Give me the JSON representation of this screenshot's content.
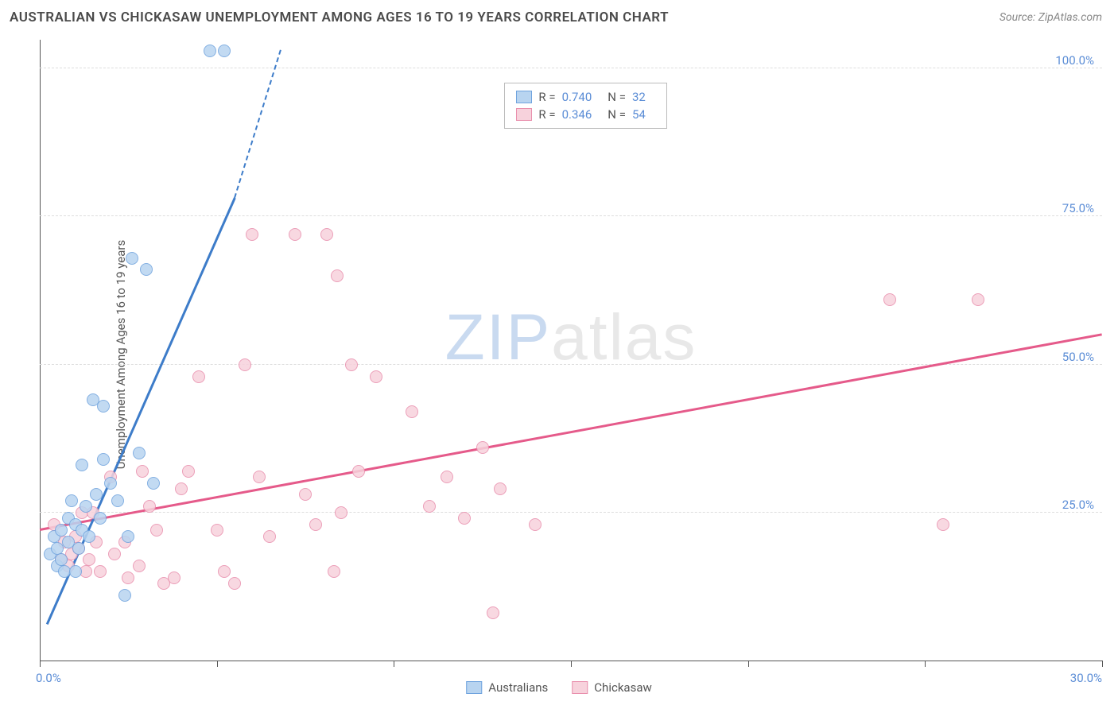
{
  "header": {
    "title": "AUSTRALIAN VS CHICKASAW UNEMPLOYMENT AMONG AGES 16 TO 19 YEARS CORRELATION CHART",
    "source": "Source: ZipAtlas.com"
  },
  "chart": {
    "type": "scatter",
    "ylabel": "Unemployment Among Ages 16 to 19 years",
    "xlim": [
      0,
      30
    ],
    "ylim": [
      0,
      105
    ],
    "xtick_positions": [
      0,
      5,
      10,
      15,
      20,
      25,
      30
    ],
    "xtick_labels": {
      "min": "0.0%",
      "max": "30.0%"
    },
    "yticks": [
      25,
      50,
      75,
      100
    ],
    "ytick_labels": [
      "25.0%",
      "50.0%",
      "75.0%",
      "100.0%"
    ],
    "background_color": "#ffffff",
    "grid_color": "#dddddd",
    "axis_color": "#555555",
    "series": {
      "australians": {
        "label": "Australians",
        "fill": "#b8d4f0",
        "stroke": "#6fa3de",
        "line_color": "#3d7cc9",
        "r_value": "0.740",
        "n_value": "32",
        "points": [
          [
            0.3,
            18
          ],
          [
            0.4,
            21
          ],
          [
            0.5,
            16
          ],
          [
            0.5,
            19
          ],
          [
            0.6,
            17
          ],
          [
            0.6,
            22
          ],
          [
            0.7,
            15
          ],
          [
            0.8,
            20
          ],
          [
            0.8,
            24
          ],
          [
            0.9,
            27
          ],
          [
            1.0,
            23
          ],
          [
            1.0,
            15
          ],
          [
            1.1,
            19
          ],
          [
            1.2,
            22
          ],
          [
            1.2,
            33
          ],
          [
            1.3,
            26
          ],
          [
            1.4,
            21
          ],
          [
            1.5,
            44
          ],
          [
            1.6,
            28
          ],
          [
            1.7,
            24
          ],
          [
            1.8,
            43
          ],
          [
            1.8,
            34
          ],
          [
            2.0,
            30
          ],
          [
            2.2,
            27
          ],
          [
            2.4,
            11
          ],
          [
            2.5,
            21
          ],
          [
            2.6,
            68
          ],
          [
            2.8,
            35
          ],
          [
            3.0,
            66
          ],
          [
            3.2,
            30
          ],
          [
            4.8,
            103
          ],
          [
            5.2,
            103
          ]
        ],
        "trend": {
          "x1": 0.2,
          "y1": 6,
          "x2": 6.2,
          "y2": 103
        },
        "trend_dashed": {
          "x1": 5.5,
          "y1": 78,
          "x2": 6.8,
          "y2": 103
        }
      },
      "chickasaw": {
        "label": "Chickasaw",
        "fill": "#f7d2dc",
        "stroke": "#e98fad",
        "line_color": "#e55a8a",
        "r_value": "0.346",
        "n_value": "54",
        "points": [
          [
            0.4,
            23
          ],
          [
            0.6,
            17
          ],
          [
            0.7,
            20
          ],
          [
            0.8,
            16
          ],
          [
            0.9,
            18
          ],
          [
            1.0,
            21
          ],
          [
            1.1,
            19
          ],
          [
            1.2,
            25
          ],
          [
            1.3,
            15
          ],
          [
            1.4,
            17
          ],
          [
            1.5,
            25
          ],
          [
            1.6,
            20
          ],
          [
            1.7,
            15
          ],
          [
            2.0,
            31
          ],
          [
            2.1,
            18
          ],
          [
            2.4,
            20
          ],
          [
            2.5,
            14
          ],
          [
            2.8,
            16
          ],
          [
            2.9,
            32
          ],
          [
            3.1,
            26
          ],
          [
            3.3,
            22
          ],
          [
            3.5,
            13
          ],
          [
            3.8,
            14
          ],
          [
            4.0,
            29
          ],
          [
            4.2,
            32
          ],
          [
            4.5,
            48
          ],
          [
            5.0,
            22
          ],
          [
            5.2,
            15
          ],
          [
            5.5,
            13
          ],
          [
            5.8,
            50
          ],
          [
            6.0,
            72
          ],
          [
            6.2,
            31
          ],
          [
            6.5,
            21
          ],
          [
            7.2,
            72
          ],
          [
            7.5,
            28
          ],
          [
            7.8,
            23
          ],
          [
            8.1,
            72
          ],
          [
            8.3,
            15
          ],
          [
            8.4,
            65
          ],
          [
            8.5,
            25
          ],
          [
            8.8,
            50
          ],
          [
            9.0,
            32
          ],
          [
            9.5,
            48
          ],
          [
            10.5,
            42
          ],
          [
            11.0,
            26
          ],
          [
            11.5,
            31
          ],
          [
            12.0,
            24
          ],
          [
            12.5,
            36
          ],
          [
            12.8,
            8
          ],
          [
            13.0,
            29
          ],
          [
            14.0,
            23
          ],
          [
            24.0,
            61
          ],
          [
            25.5,
            23
          ],
          [
            26.5,
            61
          ]
        ],
        "trend": {
          "x1": 0,
          "y1": 22,
          "x2": 30,
          "y2": 55
        }
      }
    },
    "watermark": {
      "part1": "ZIP",
      "part2": "atlas"
    }
  },
  "legend_stats": {
    "r_label": "R =",
    "n_label": "N ="
  }
}
